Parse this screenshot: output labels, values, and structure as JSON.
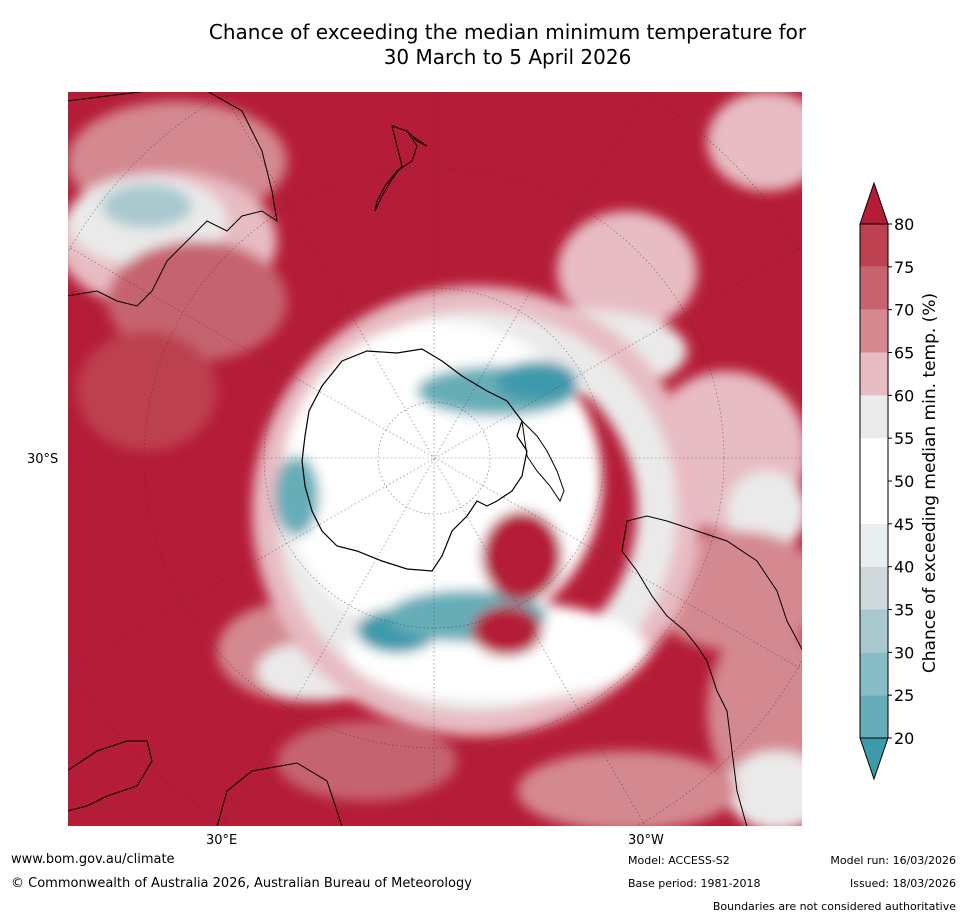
{
  "title": {
    "line1": "Chance of exceeding the median minimum temperature for",
    "line2": "30 March to 5 April 2026"
  },
  "map": {
    "labels": {
      "lat_30s": "30°S",
      "lon_30e": "30°E",
      "lon_30w": "30°W"
    },
    "colors": {
      "ocean_high": "#b51c37",
      "ice": "#ffffff",
      "coast": "#000000"
    }
  },
  "colorbar": {
    "title": "Chance of exceeding median min. temp. (%)",
    "ticks": [
      "20",
      "25",
      "30",
      "35",
      "40",
      "45",
      "50",
      "55",
      "60",
      "65",
      "70",
      "75",
      "80"
    ],
    "colors": [
      "#3d9aab",
      "#66adb8",
      "#88bcc5",
      "#a9c9cf",
      "#cfd9dc",
      "#e9eef1",
      "#ffffff",
      "#ffffff",
      "#ebeaea",
      "#e7bcc2",
      "#d48890",
      "#c6636f",
      "#bd4150",
      "#b51c37"
    ],
    "top_color": "#b51c37",
    "bottom_color": "#3d9aab"
  },
  "footer": {
    "url": "www.bom.gov.au/climate",
    "copyright": "© Commonwealth of Australia 2026, Australian Bureau of Meteorology",
    "model": "Model: ACCESS-S2",
    "base_period": "Base period: 1981-2018",
    "model_run": "Model run: 16/03/2026",
    "issued": "Issued: 18/03/2026",
    "disclaimer": "Boundaries are not considered authoritative"
  }
}
